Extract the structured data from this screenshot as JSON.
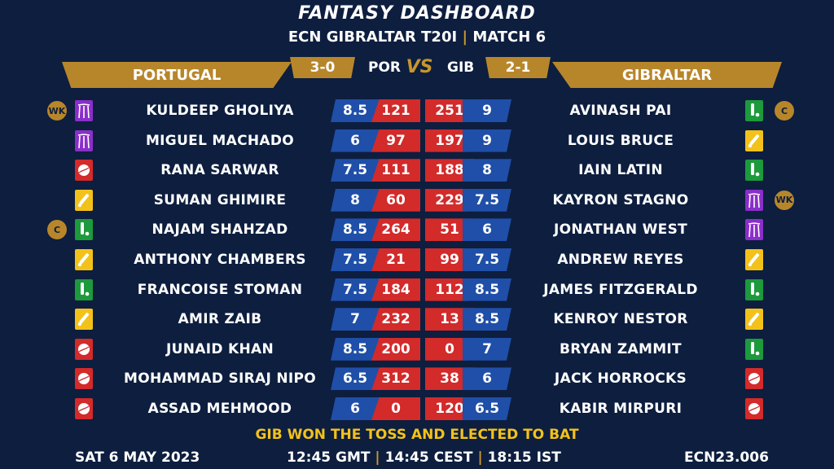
{
  "header": {
    "title": "FANTASY DASHBOARD",
    "subtitle_left": "ECN GIBRALTAR T20I",
    "subtitle_sep": "|",
    "subtitle_right": "MATCH 6"
  },
  "teams": {
    "left": {
      "name": "PORTUGAL",
      "abbr": "POR",
      "record": "3-0"
    },
    "right": {
      "name": "GIBRALTAR",
      "abbr": "GIB",
      "record": "2-1"
    },
    "vs": "VS"
  },
  "role_icons": {
    "wk": "wicket-keeper-icon",
    "bowl": "cricket-ball-icon",
    "ar": "all-rounder-icon",
    "bat": "batsman-icon"
  },
  "colors": {
    "wk": "#8a2fc9",
    "bowl": "#d32a2a",
    "ar": "#f3c21a",
    "bat": "#1d9a3c",
    "accent": "#b8862a"
  },
  "rows": [
    {
      "l": {
        "name": "KULDEEP GHOLIYA",
        "role": "wk",
        "badge": "WK",
        "credit": "8.5",
        "points": "121"
      },
      "r": {
        "name": "AVINASH PAI",
        "role": "bat",
        "badge": "C",
        "credit": "9",
        "points": "251"
      }
    },
    {
      "l": {
        "name": "MIGUEL MACHADO",
        "role": "wk",
        "badge": "",
        "credit": "6",
        "points": "97"
      },
      "r": {
        "name": "LOUIS BRUCE",
        "role": "ar",
        "badge": "",
        "credit": "9",
        "points": "197"
      }
    },
    {
      "l": {
        "name": "RANA SARWAR",
        "role": "bowl",
        "badge": "",
        "credit": "7.5",
        "points": "111"
      },
      "r": {
        "name": "IAIN LATIN",
        "role": "bat",
        "badge": "",
        "credit": "8",
        "points": "188"
      }
    },
    {
      "l": {
        "name": "SUMAN GHIMIRE",
        "role": "ar",
        "badge": "",
        "credit": "8",
        "points": "60"
      },
      "r": {
        "name": "KAYRON STAGNO",
        "role": "wk",
        "badge": "WK",
        "credit": "7.5",
        "points": "229"
      }
    },
    {
      "l": {
        "name": "NAJAM SHAHZAD",
        "role": "bat",
        "badge": "C",
        "credit": "8.5",
        "points": "264"
      },
      "r": {
        "name": "JONATHAN WEST",
        "role": "wk",
        "badge": "",
        "credit": "6",
        "points": "51"
      }
    },
    {
      "l": {
        "name": "ANTHONY CHAMBERS",
        "role": "ar",
        "badge": "",
        "credit": "7.5",
        "points": "21"
      },
      "r": {
        "name": "ANDREW REYES",
        "role": "ar",
        "badge": "",
        "credit": "7.5",
        "points": "99"
      }
    },
    {
      "l": {
        "name": "FRANCOISE STOMAN",
        "role": "bat",
        "badge": "",
        "credit": "7.5",
        "points": "184"
      },
      "r": {
        "name": "JAMES FITZGERALD",
        "role": "bat",
        "badge": "",
        "credit": "8.5",
        "points": "112"
      }
    },
    {
      "l": {
        "name": "AMIR ZAIB",
        "role": "ar",
        "badge": "",
        "credit": "7",
        "points": "232"
      },
      "r": {
        "name": "KENROY NESTOR",
        "role": "ar",
        "badge": "",
        "credit": "8.5",
        "points": "13"
      }
    },
    {
      "l": {
        "name": "JUNAID KHAN",
        "role": "bowl",
        "badge": "",
        "credit": "8.5",
        "points": "200"
      },
      "r": {
        "name": "BRYAN ZAMMIT",
        "role": "bat",
        "badge": "",
        "credit": "7",
        "points": "0"
      }
    },
    {
      "l": {
        "name": "MOHAMMAD SIRAJ NIPO",
        "role": "bowl",
        "badge": "",
        "credit": "6.5",
        "points": "312"
      },
      "r": {
        "name": "JACK HORROCKS",
        "role": "bowl",
        "badge": "",
        "credit": "6",
        "points": "38"
      }
    },
    {
      "l": {
        "name": "ASSAD MEHMOOD",
        "role": "bowl",
        "badge": "",
        "credit": "6",
        "points": "0"
      },
      "r": {
        "name": "KABIR MIRPURI",
        "role": "bowl",
        "badge": "",
        "credit": "6.5",
        "points": "120"
      }
    }
  ],
  "toss": "GIB WON THE TOSS AND ELECTED TO BAT",
  "footer": {
    "date": "SAT 6 MAY 2023",
    "time_gmt": "12:45 GMT",
    "time_cest": "14:45 CEST",
    "time_ist": "18:15 IST",
    "sep": "|",
    "code": "ECN23.006"
  }
}
